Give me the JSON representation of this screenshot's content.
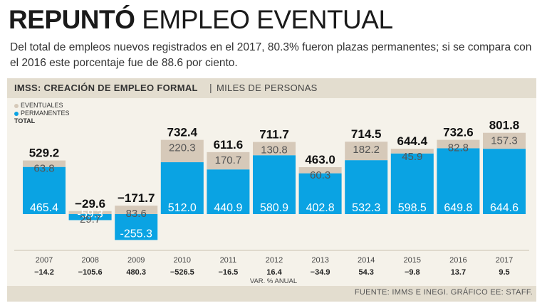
{
  "headline": {
    "bold": "REPUNTÓ",
    "light": "EMPLEO EVENTUAL"
  },
  "subtitle": "Del total de empleos nuevos registrados en el 2017, 80.3% fueron plazas permanentes; si se compara con el 2016 este porcentaje fue de 88.6 por ciento.",
  "panel": {
    "title": "IMSS: CREACIÓN DE EMPLEO FORMAL",
    "separator": "|",
    "unit": "MILES DE PERSONAS"
  },
  "legend": {
    "eventuales": "EVENTUALES",
    "permanentes": "PERMANENTES",
    "total": "TOTAL"
  },
  "source": "FUENTE: IMMS E INEGI. GRÁFICO EE: STAFF.",
  "colors": {
    "permanentes": "#0aa3e3",
    "eventuales": "#d6c9b9",
    "panel": "#f5f2ea",
    "header": "#e3ddcf"
  },
  "chart_data": {
    "type": "bar",
    "stacked": true,
    "categories": [
      "2007",
      "2008",
      "2009",
      "2010",
      "2011",
      "2012",
      "2013",
      "2014",
      "2015",
      "2016",
      "2017"
    ],
    "series": [
      {
        "name": "PERMANENTES",
        "values": [
          465.4,
          -59.3,
          -255.3,
          512.0,
          440.9,
          580.9,
          402.8,
          532.3,
          598.5,
          649.8,
          644.6
        ]
      },
      {
        "name": "EVENTUALES",
        "values": [
          63.8,
          29.7,
          83.6,
          220.3,
          170.7,
          130.8,
          60.3,
          182.2,
          45.9,
          82.8,
          157.3
        ]
      }
    ],
    "totals": [
      529.2,
      -29.6,
      -171.7,
      732.4,
      611.6,
      711.7,
      463.0,
      714.5,
      644.4,
      732.6,
      801.8
    ],
    "labels": {
      "permanentes": [
        "465.4",
        "-59.3",
        "-255.3",
        "512.0",
        "440.9",
        "580.9",
        "402.8",
        "532.3",
        "598.5",
        "649.8",
        "644.6"
      ],
      "eventuales": [
        "63.8",
        "29.7",
        "83.6",
        "220.3",
        "170.7",
        "130.8",
        "60.3",
        "182.2",
        "45.9",
        "82.8",
        "157.3"
      ],
      "totals": [
        "529.2",
        "−29.6",
        "−171.7",
        "732.4",
        "611.6",
        "711.7",
        "463.0",
        "714.5",
        "644.4",
        "732.6",
        "801.8"
      ],
      "var_pct": [
        "−14.2",
        "−105.6",
        "480.3",
        "−526.5",
        "−16.5",
        "16.4",
        "−34.9",
        "54.3",
        "−9.8",
        "13.7",
        "9.5"
      ]
    },
    "var_pct_label": "VAR. % ANUAL",
    "var_pct": [
      -14.2,
      -105.6,
      480.3,
      -526.5,
      -16.5,
      16.4,
      -34.9,
      54.3,
      -9.8,
      13.7,
      9.5
    ]
  }
}
